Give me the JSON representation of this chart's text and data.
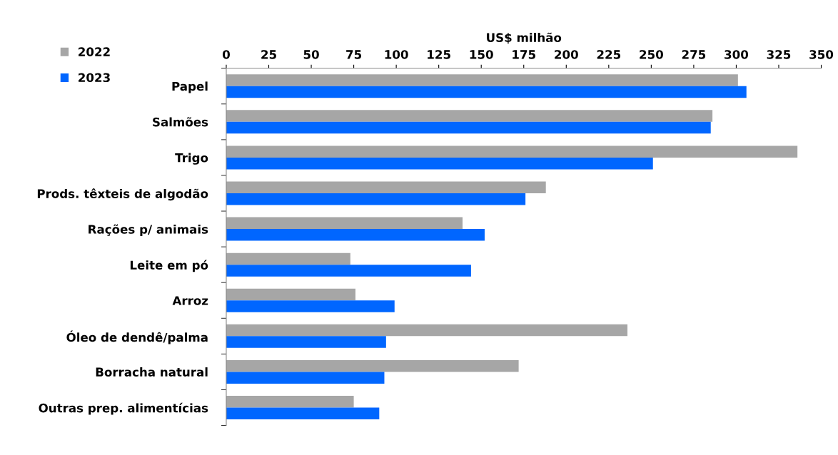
{
  "chart_data": {
    "type": "bar",
    "orientation": "horizontal",
    "xlabel": "US$ milhão",
    "categories": [
      "Papel",
      "Salmões",
      "Trigo",
      "Prods. têxteis de algodão",
      "Rações p/ animais",
      "Leite em pó",
      "Arroz",
      "Óleo de dendê/palma",
      "Borracha natural",
      "Outras prep. alimentícias"
    ],
    "series": [
      {
        "name": "2022",
        "color": "#a6a6a6",
        "values": [
          301,
          286,
          336,
          188,
          139,
          73,
          76,
          236,
          172,
          75
        ]
      },
      {
        "name": "2023",
        "color": "#0066ff",
        "values": [
          306,
          285,
          251,
          176,
          152,
          144,
          99,
          94,
          93,
          90
        ]
      }
    ],
    "xlim": [
      0,
      350
    ],
    "xticks": [
      0,
      25,
      50,
      75,
      100,
      125,
      150,
      175,
      200,
      225,
      250,
      275,
      300,
      325,
      350
    ],
    "grid": false,
    "legend": "top left"
  }
}
